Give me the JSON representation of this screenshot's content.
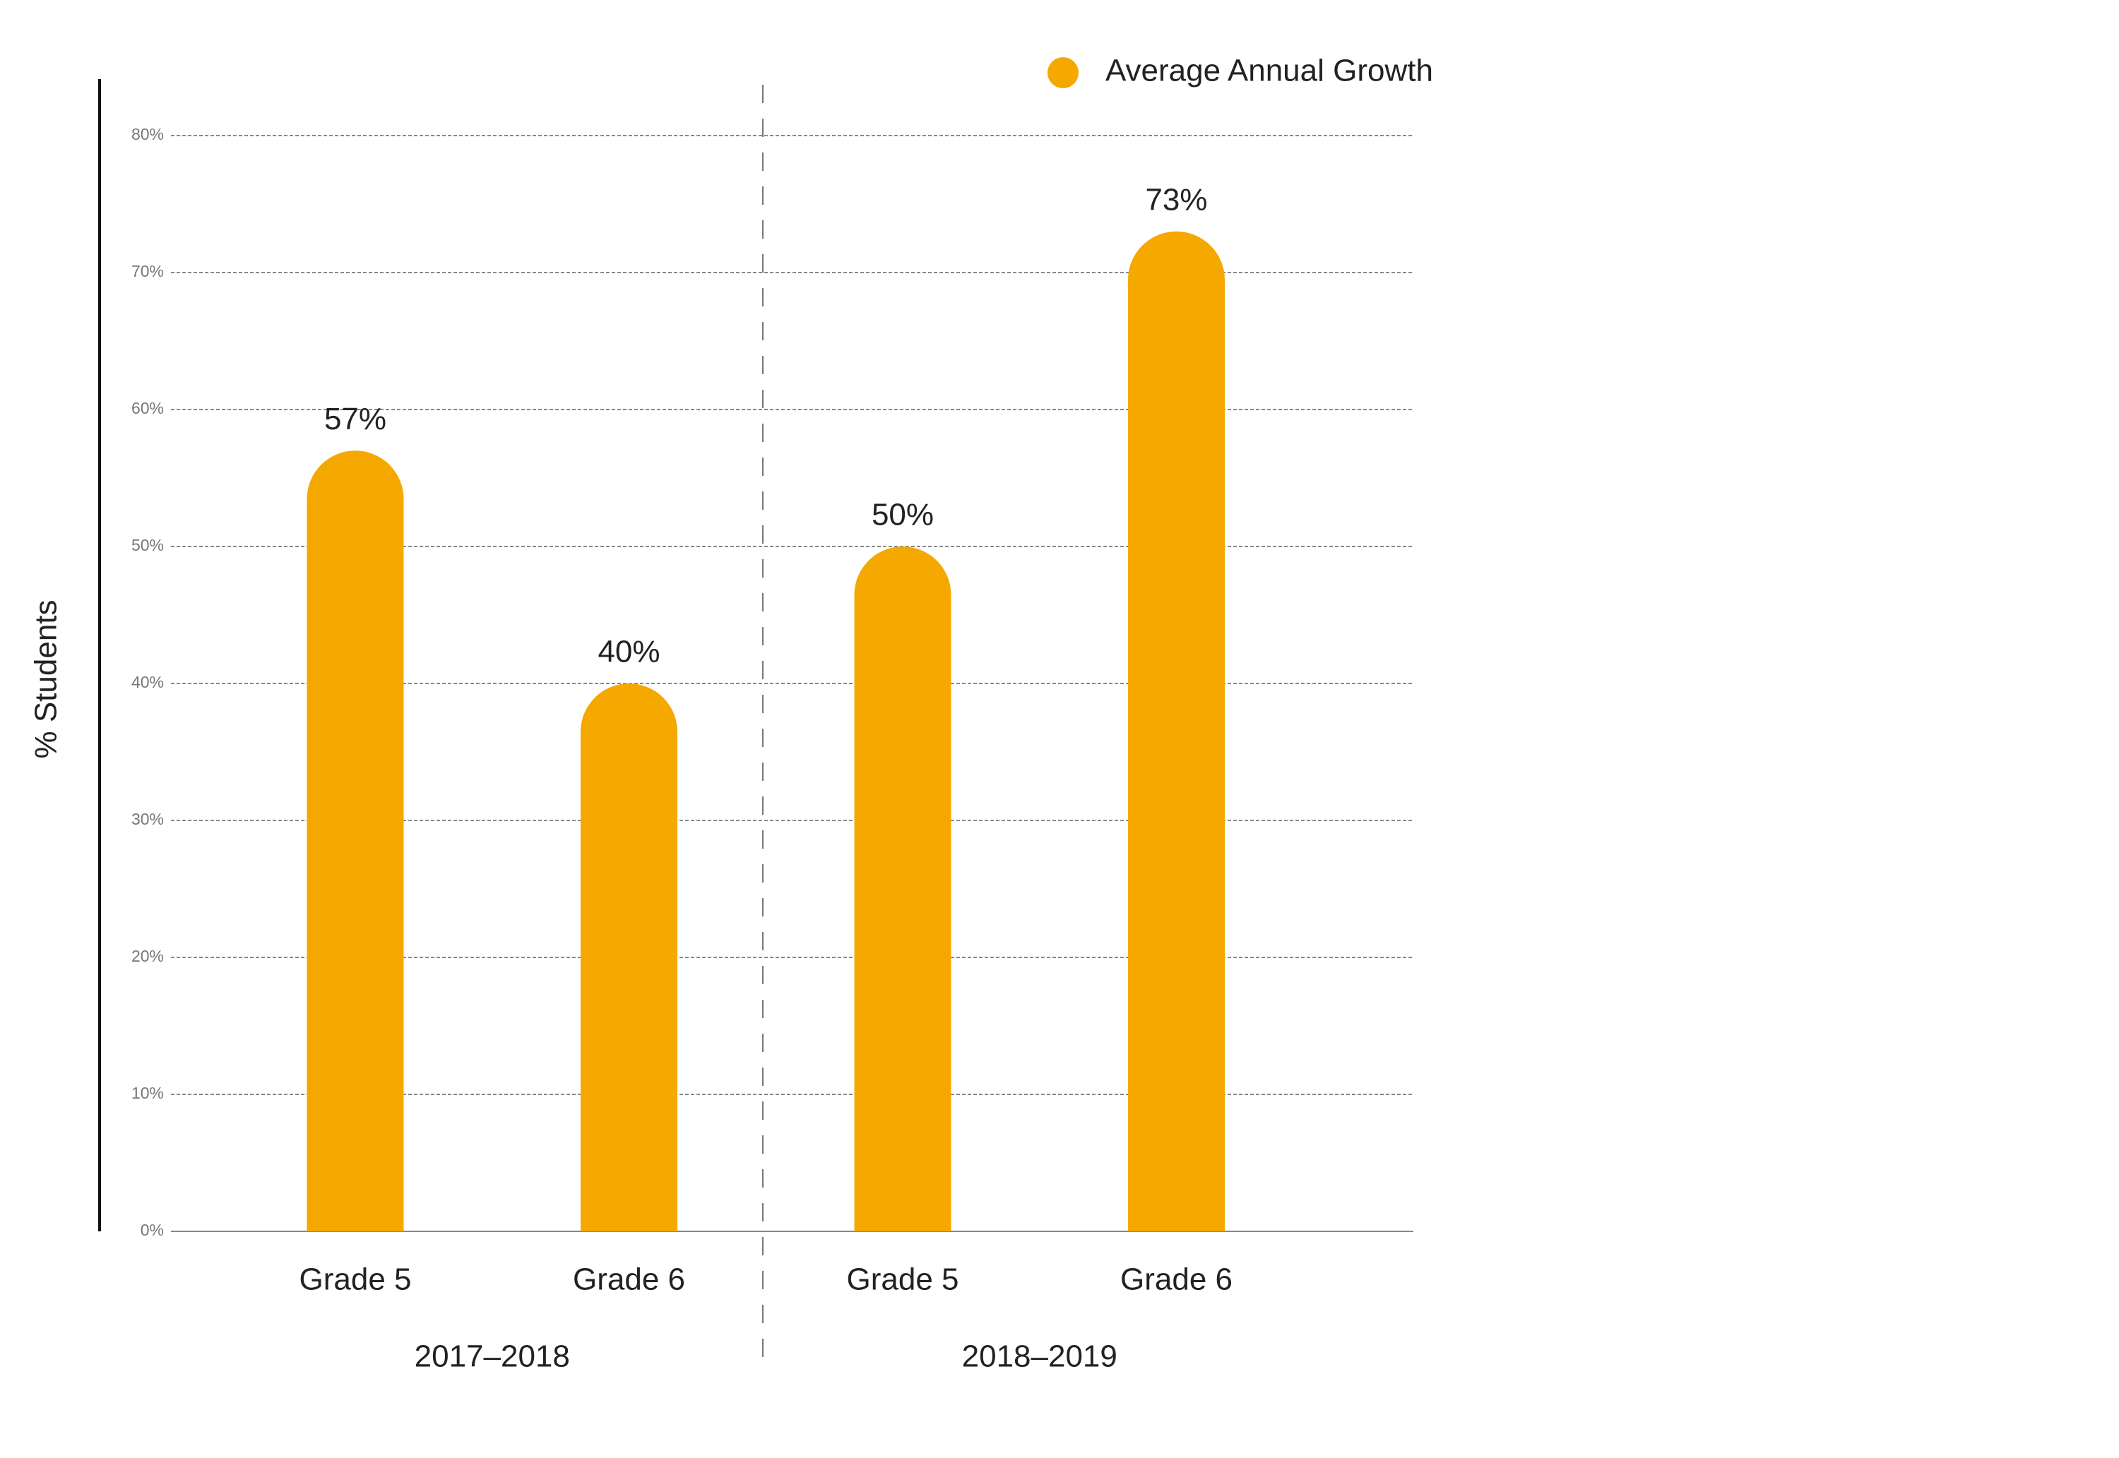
{
  "chart_data": {
    "type": "bar",
    "y_label": "% Students",
    "categories": [
      "Grade 5",
      "Grade 6",
      "Grade 5",
      "Grade 6"
    ],
    "group_labels": [
      "2017–2018",
      "2018–2019"
    ],
    "series": [
      {
        "name": "Average Annual Growth",
        "color": "#f5a800",
        "values": [
          57,
          40,
          50,
          73
        ],
        "value_labels": [
          "57%",
          "40%",
          "50%",
          "73%"
        ]
      }
    ],
    "ylim": [
      0,
      80
    ],
    "yticks": [
      {
        "value": 0,
        "label": "0%"
      },
      {
        "value": 10,
        "label": "10%"
      },
      {
        "value": 20,
        "label": "20%"
      },
      {
        "value": 30,
        "label": "30%"
      },
      {
        "value": 40,
        "label": "40%"
      },
      {
        "value": 50,
        "label": "50%"
      },
      {
        "value": 60,
        "label": "60%"
      },
      {
        "value": 70,
        "label": "70%"
      },
      {
        "value": 80,
        "label": "80%"
      }
    ],
    "grid": true,
    "legend": "top-right"
  }
}
